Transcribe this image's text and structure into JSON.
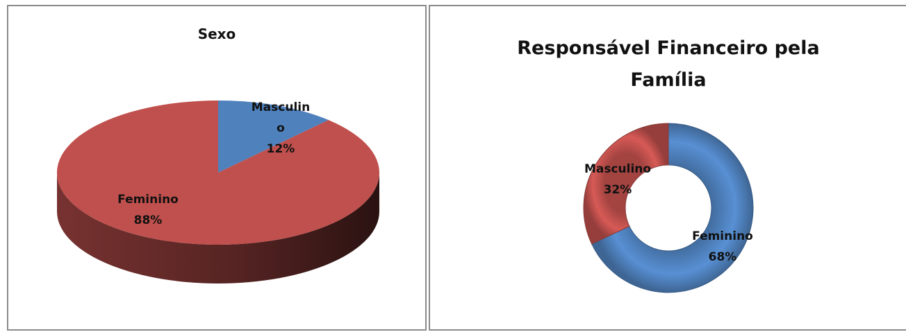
{
  "charts": [
    {
      "chart_data": {
        "type": "pie",
        "title": "Sexo",
        "categories": [
          "Masculino",
          "Feminino"
        ],
        "values": [
          12,
          88
        ],
        "data_labels": [
          {
            "lines": [
              "Masculin",
              "o",
              "12%"
            ]
          },
          {
            "lines": [
              "Feminino",
              "88%"
            ]
          }
        ],
        "colors": [
          "#4f81bd",
          "#c0504d"
        ],
        "style": "3d"
      }
    },
    {
      "chart_data": {
        "type": "pie",
        "variant": "doughnut",
        "title_lines": [
          "Responsável Financeiro pela",
          "Família"
        ],
        "categories": [
          "Feminino",
          "Masculino"
        ],
        "values": [
          68,
          32
        ],
        "data_labels": [
          {
            "lines": [
              "Feminino",
              "68%"
            ]
          },
          {
            "lines": [
              "Masculino",
              "32%"
            ]
          }
        ],
        "colors": [
          "#4f81bd",
          "#c0504d"
        ]
      }
    }
  ]
}
